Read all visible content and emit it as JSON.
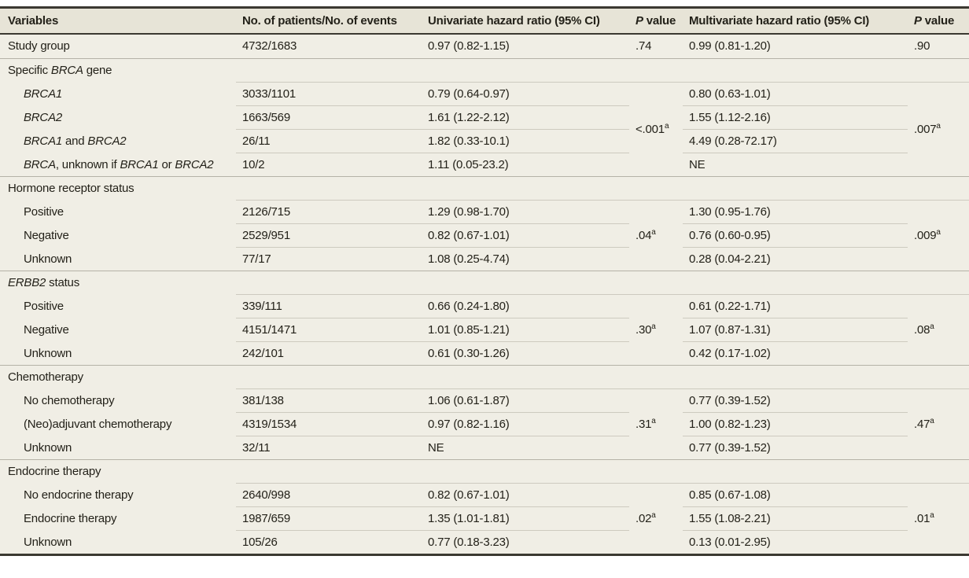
{
  "colors": {
    "page_background": "#ffffff",
    "header_background": "#e7e4d7",
    "row_background": "#f0eee5",
    "rule_dark": "#3b3931",
    "rule_section": "#b5b2a7",
    "rule_light": "#cdcabf",
    "text": "#232119"
  },
  "table": {
    "columns": [
      {
        "key": "variables",
        "segments": [
          {
            "t": "Variables"
          }
        ]
      },
      {
        "key": "patients-events",
        "segments": [
          {
            "t": "No. of patients/No. of events"
          }
        ]
      },
      {
        "key": "univariate-hr",
        "segments": [
          {
            "t": "Univariate hazard ratio (95% CI)"
          }
        ]
      },
      {
        "key": "p-value-univariate",
        "segments": [
          {
            "t": "P",
            "i": true
          },
          {
            "t": " value"
          }
        ]
      },
      {
        "key": "multivariate-hr",
        "segments": [
          {
            "t": "Multivariate hazard ratio (95% CI)"
          }
        ]
      },
      {
        "key": "p-value-multivariate",
        "segments": [
          {
            "t": "P",
            "i": true
          },
          {
            "t": " value"
          }
        ]
      }
    ],
    "sections": [
      {
        "header": null,
        "p_uni": [
          {
            "t": ".74"
          }
        ],
        "p_multi": [
          {
            "t": ".90"
          }
        ],
        "rows": [
          {
            "label": [
              {
                "t": "Study group"
              }
            ],
            "patients": "4732/1683",
            "uni": "0.97 (0.82-1.15)",
            "multi": "0.99 (0.81-1.20)"
          }
        ]
      },
      {
        "header": [
          {
            "t": "Specific "
          },
          {
            "t": "BRCA",
            "i": true
          },
          {
            "t": " gene"
          }
        ],
        "p_uni": [
          {
            "t": "<.001"
          },
          {
            "t": "a",
            "sup": true
          }
        ],
        "p_multi": [
          {
            "t": ".007"
          },
          {
            "t": "a",
            "sup": true
          }
        ],
        "rows": [
          {
            "label": [
              {
                "t": "BRCA1",
                "i": true
              }
            ],
            "patients": "3033/1101",
            "uni": "0.79 (0.64-0.97)",
            "multi": "0.80 (0.63-1.01)"
          },
          {
            "label": [
              {
                "t": "BRCA2",
                "i": true
              }
            ],
            "patients": "1663/569",
            "uni": "1.61 (1.22-2.12)",
            "multi": "1.55 (1.12-2.16)"
          },
          {
            "label": [
              {
                "t": "BRCA1",
                "i": true
              },
              {
                "t": " and "
              },
              {
                "t": "BRCA2",
                "i": true
              }
            ],
            "patients": "26/11",
            "uni": "1.82 (0.33-10.1)",
            "multi": "4.49 (0.28-72.17)"
          },
          {
            "label": [
              {
                "t": "BRCA",
                "i": true
              },
              {
                "t": ", unknown if "
              },
              {
                "t": "BRCA1",
                "i": true
              },
              {
                "t": " or "
              },
              {
                "t": "BRCA2",
                "i": true
              }
            ],
            "patients": "10/2",
            "uni": "1.11 (0.05-23.2)",
            "multi": "NE"
          }
        ]
      },
      {
        "header": [
          {
            "t": "Hormone receptor status"
          }
        ],
        "p_uni": [
          {
            "t": ".04"
          },
          {
            "t": "a",
            "sup": true
          }
        ],
        "p_multi": [
          {
            "t": ".009"
          },
          {
            "t": "a",
            "sup": true
          }
        ],
        "rows": [
          {
            "label": [
              {
                "t": "Positive"
              }
            ],
            "patients": "2126/715",
            "uni": "1.29 (0.98-1.70)",
            "multi": "1.30 (0.95-1.76)"
          },
          {
            "label": [
              {
                "t": "Negative"
              }
            ],
            "patients": "2529/951",
            "uni": "0.82 (0.67-1.01)",
            "multi": "0.76 (0.60-0.95)"
          },
          {
            "label": [
              {
                "t": "Unknown"
              }
            ],
            "patients": "77/17",
            "uni": "1.08 (0.25-4.74)",
            "multi": "0.28 (0.04-2.21)"
          }
        ]
      },
      {
        "header": [
          {
            "t": "ERBB2",
            "i": true
          },
          {
            "t": " status"
          }
        ],
        "p_uni": [
          {
            "t": ".30"
          },
          {
            "t": "a",
            "sup": true
          }
        ],
        "p_multi": [
          {
            "t": ".08"
          },
          {
            "t": "a",
            "sup": true
          }
        ],
        "rows": [
          {
            "label": [
              {
                "t": "Positive"
              }
            ],
            "patients": "339/111",
            "uni": "0.66 (0.24-1.80)",
            "multi": "0.61 (0.22-1.71)"
          },
          {
            "label": [
              {
                "t": "Negative"
              }
            ],
            "patients": "4151/1471",
            "uni": "1.01 (0.85-1.21)",
            "multi": "1.07 (0.87-1.31)"
          },
          {
            "label": [
              {
                "t": "Unknown"
              }
            ],
            "patients": "242/101",
            "uni": "0.61 (0.30-1.26)",
            "multi": "0.42 (0.17-1.02)"
          }
        ]
      },
      {
        "header": [
          {
            "t": "Chemotherapy"
          }
        ],
        "p_uni": [
          {
            "t": ".31"
          },
          {
            "t": "a",
            "sup": true
          }
        ],
        "p_multi": [
          {
            "t": ".47"
          },
          {
            "t": "a",
            "sup": true
          }
        ],
        "rows": [
          {
            "label": [
              {
                "t": "No chemotherapy"
              }
            ],
            "patients": "381/138",
            "uni": "1.06 (0.61-1.87)",
            "multi": "0.77 (0.39-1.52)"
          },
          {
            "label": [
              {
                "t": "(Neo)adjuvant chemotherapy"
              }
            ],
            "patients": "4319/1534",
            "uni": "0.97 (0.82-1.16)",
            "multi": "1.00 (0.82-1.23)"
          },
          {
            "label": [
              {
                "t": "Unknown"
              }
            ],
            "patients": "32/11",
            "uni": "NE",
            "multi": "0.77 (0.39-1.52)"
          }
        ]
      },
      {
        "header": [
          {
            "t": "Endocrine therapy"
          }
        ],
        "p_uni": [
          {
            "t": ".02"
          },
          {
            "t": "a",
            "sup": true
          }
        ],
        "p_multi": [
          {
            "t": ".01"
          },
          {
            "t": "a",
            "sup": true
          }
        ],
        "rows": [
          {
            "label": [
              {
                "t": "No endocrine therapy"
              }
            ],
            "patients": "2640/998",
            "uni": "0.82 (0.67-1.01)",
            "multi": "0.85 (0.67-1.08)"
          },
          {
            "label": [
              {
                "t": "Endocrine therapy"
              }
            ],
            "patients": "1987/659",
            "uni": "1.35 (1.01-1.81)",
            "multi": "1.55 (1.08-2.21)"
          },
          {
            "label": [
              {
                "t": "Unknown"
              }
            ],
            "patients": "105/26",
            "uni": "0.77 (0.18-3.23)",
            "multi": "0.13 (0.01-2.95)"
          }
        ]
      }
    ]
  }
}
